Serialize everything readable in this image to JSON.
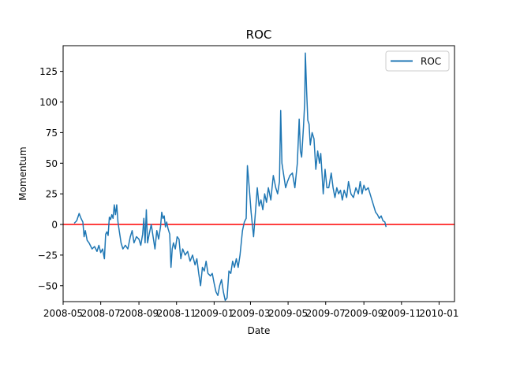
{
  "chart_data": {
    "type": "line",
    "title": "ROC",
    "xlabel": "Date",
    "ylabel": "Momentum",
    "xlim": [
      "2008-05-01",
      "2010-01-26"
    ],
    "ylim": [
      -63,
      146
    ],
    "x_ticks": [
      "2008-05",
      "2008-07",
      "2008-09",
      "2008-11",
      "2009-01",
      "2009-03",
      "2009-05",
      "2009-07",
      "2009-09",
      "2009-11",
      "2010-01"
    ],
    "y_ticks": [
      -50,
      -25,
      0,
      25,
      50,
      75,
      100,
      125
    ],
    "reference_line": {
      "y": 0,
      "color": "#ff0000"
    },
    "legend": {
      "position": "top-right",
      "entries": [
        "ROC"
      ]
    },
    "grid": false,
    "colors": {
      "series": "#1f77b4",
      "reference": "#ff0000"
    },
    "series": [
      {
        "name": "ROC",
        "color": "#1f77b4",
        "points": [
          [
            "2008-05-19",
            1
          ],
          [
            "2008-05-23",
            3
          ],
          [
            "2008-05-27",
            9
          ],
          [
            "2008-05-30",
            5
          ],
          [
            "2008-06-02",
            2
          ],
          [
            "2008-06-04",
            -10
          ],
          [
            "2008-06-06",
            -5
          ],
          [
            "2008-06-09",
            -13
          ],
          [
            "2008-06-12",
            -15
          ],
          [
            "2008-06-17",
            -20
          ],
          [
            "2008-06-21",
            -18
          ],
          [
            "2008-06-25",
            -22
          ],
          [
            "2008-06-28",
            -17
          ],
          [
            "2008-07-01",
            -23
          ],
          [
            "2008-07-04",
            -20
          ],
          [
            "2008-07-07",
            -28
          ],
          [
            "2008-07-09",
            -8
          ],
          [
            "2008-07-11",
            -6
          ],
          [
            "2008-07-13",
            -9
          ],
          [
            "2008-07-15",
            6
          ],
          [
            "2008-07-17",
            4
          ],
          [
            "2008-07-19",
            8
          ],
          [
            "2008-07-21",
            5
          ],
          [
            "2008-07-23",
            16
          ],
          [
            "2008-07-25",
            8
          ],
          [
            "2008-07-27",
            16
          ],
          [
            "2008-07-29",
            2
          ],
          [
            "2008-07-31",
            -5
          ],
          [
            "2008-08-03",
            -15
          ],
          [
            "2008-08-06",
            -20
          ],
          [
            "2008-08-10",
            -17
          ],
          [
            "2008-08-14",
            -20
          ],
          [
            "2008-08-18",
            -10
          ],
          [
            "2008-08-21",
            -5
          ],
          [
            "2008-08-24",
            -15
          ],
          [
            "2008-08-28",
            -10
          ],
          [
            "2008-09-01",
            -12
          ],
          [
            "2008-09-04",
            -17
          ],
          [
            "2008-09-07",
            -8
          ],
          [
            "2008-09-09",
            5
          ],
          [
            "2008-09-11",
            -15
          ],
          [
            "2008-09-13",
            12
          ],
          [
            "2008-09-15",
            -15
          ],
          [
            "2008-09-18",
            -7
          ],
          [
            "2008-09-21",
            0
          ],
          [
            "2008-09-24",
            -10
          ],
          [
            "2008-09-27",
            -20
          ],
          [
            "2008-09-30",
            -5
          ],
          [
            "2008-10-03",
            -12
          ],
          [
            "2008-10-06",
            -2
          ],
          [
            "2008-10-08",
            10
          ],
          [
            "2008-10-10",
            5
          ],
          [
            "2008-10-12",
            7
          ],
          [
            "2008-10-14",
            -2
          ],
          [
            "2008-10-16",
            2
          ],
          [
            "2008-10-18",
            -3
          ],
          [
            "2008-10-21",
            -8
          ],
          [
            "2008-10-23",
            -35
          ],
          [
            "2008-10-25",
            -20
          ],
          [
            "2008-10-27",
            -15
          ],
          [
            "2008-10-30",
            -20
          ],
          [
            "2008-11-02",
            -10
          ],
          [
            "2008-11-05",
            -12
          ],
          [
            "2008-11-08",
            -28
          ],
          [
            "2008-11-11",
            -20
          ],
          [
            "2008-11-15",
            -25
          ],
          [
            "2008-11-19",
            -22
          ],
          [
            "2008-11-23",
            -30
          ],
          [
            "2008-11-27",
            -25
          ],
          [
            "2008-12-01",
            -33
          ],
          [
            "2008-12-04",
            -28
          ],
          [
            "2008-12-07",
            -40
          ],
          [
            "2008-12-10",
            -50
          ],
          [
            "2008-12-13",
            -35
          ],
          [
            "2008-12-16",
            -38
          ],
          [
            "2008-12-19",
            -30
          ],
          [
            "2008-12-22",
            -40
          ],
          [
            "2008-12-26",
            -42
          ],
          [
            "2008-12-29",
            -40
          ],
          [
            "2009-01-01",
            -48
          ],
          [
            "2009-01-04",
            -55
          ],
          [
            "2009-01-07",
            -58
          ],
          [
            "2009-01-10",
            -50
          ],
          [
            "2009-01-13",
            -45
          ],
          [
            "2009-01-16",
            -55
          ],
          [
            "2009-01-19",
            -62
          ],
          [
            "2009-01-22",
            -60
          ],
          [
            "2009-01-25",
            -38
          ],
          [
            "2009-01-28",
            -40
          ],
          [
            "2009-01-31",
            -30
          ],
          [
            "2009-02-03",
            -35
          ],
          [
            "2009-02-06",
            -28
          ],
          [
            "2009-02-09",
            -35
          ],
          [
            "2009-02-12",
            -25
          ],
          [
            "2009-02-16",
            -5
          ],
          [
            "2009-02-19",
            2
          ],
          [
            "2009-02-22",
            5
          ],
          [
            "2009-02-24",
            48
          ],
          [
            "2009-02-27",
            30
          ],
          [
            "2009-03-02",
            10
          ],
          [
            "2009-03-04",
            0
          ],
          [
            "2009-03-06",
            -10
          ],
          [
            "2009-03-09",
            10
          ],
          [
            "2009-03-12",
            30
          ],
          [
            "2009-03-15",
            15
          ],
          [
            "2009-03-18",
            20
          ],
          [
            "2009-03-21",
            12
          ],
          [
            "2009-03-24",
            25
          ],
          [
            "2009-03-27",
            18
          ],
          [
            "2009-03-30",
            30
          ],
          [
            "2009-04-03",
            20
          ],
          [
            "2009-04-07",
            40
          ],
          [
            "2009-04-11",
            30
          ],
          [
            "2009-04-14",
            25
          ],
          [
            "2009-04-17",
            35
          ],
          [
            "2009-04-19",
            93
          ],
          [
            "2009-04-21",
            50
          ],
          [
            "2009-04-24",
            40
          ],
          [
            "2009-04-27",
            30
          ],
          [
            "2009-04-30",
            35
          ],
          [
            "2009-05-04",
            40
          ],
          [
            "2009-05-08",
            42
          ],
          [
            "2009-05-12",
            30
          ],
          [
            "2009-05-16",
            50
          ],
          [
            "2009-05-19",
            86
          ],
          [
            "2009-05-21",
            60
          ],
          [
            "2009-05-23",
            55
          ],
          [
            "2009-05-26",
            80
          ],
          [
            "2009-05-28",
            100
          ],
          [
            "2009-05-29",
            140
          ],
          [
            "2009-05-31",
            110
          ],
          [
            "2009-06-02",
            85
          ],
          [
            "2009-06-04",
            82
          ],
          [
            "2009-06-06",
            65
          ],
          [
            "2009-06-09",
            75
          ],
          [
            "2009-06-12",
            70
          ],
          [
            "2009-06-15",
            45
          ],
          [
            "2009-06-18",
            60
          ],
          [
            "2009-06-21",
            50
          ],
          [
            "2009-06-23",
            58
          ],
          [
            "2009-06-25",
            42
          ],
          [
            "2009-06-27",
            25
          ],
          [
            "2009-06-30",
            45
          ],
          [
            "2009-07-03",
            30
          ],
          [
            "2009-07-06",
            30
          ],
          [
            "2009-07-10",
            42
          ],
          [
            "2009-07-13",
            30
          ],
          [
            "2009-07-16",
            22
          ],
          [
            "2009-07-19",
            30
          ],
          [
            "2009-07-22",
            25
          ],
          [
            "2009-07-25",
            28
          ],
          [
            "2009-07-28",
            20
          ],
          [
            "2009-07-31",
            28
          ],
          [
            "2009-08-04",
            22
          ],
          [
            "2009-08-07",
            35
          ],
          [
            "2009-08-11",
            25
          ],
          [
            "2009-08-15",
            22
          ],
          [
            "2009-08-19",
            30
          ],
          [
            "2009-08-23",
            25
          ],
          [
            "2009-08-26",
            35
          ],
          [
            "2009-08-29",
            25
          ],
          [
            "2009-09-01",
            32
          ],
          [
            "2009-09-04",
            28
          ],
          [
            "2009-09-08",
            30
          ],
          [
            "2009-09-11",
            25
          ],
          [
            "2009-09-14",
            20
          ],
          [
            "2009-09-17",
            15
          ],
          [
            "2009-09-20",
            10
          ],
          [
            "2009-09-23",
            8
          ],
          [
            "2009-09-26",
            5
          ],
          [
            "2009-09-29",
            7
          ],
          [
            "2009-10-02",
            3
          ],
          [
            "2009-10-05",
            2
          ],
          [
            "2009-10-07",
            -2
          ]
        ]
      }
    ]
  }
}
